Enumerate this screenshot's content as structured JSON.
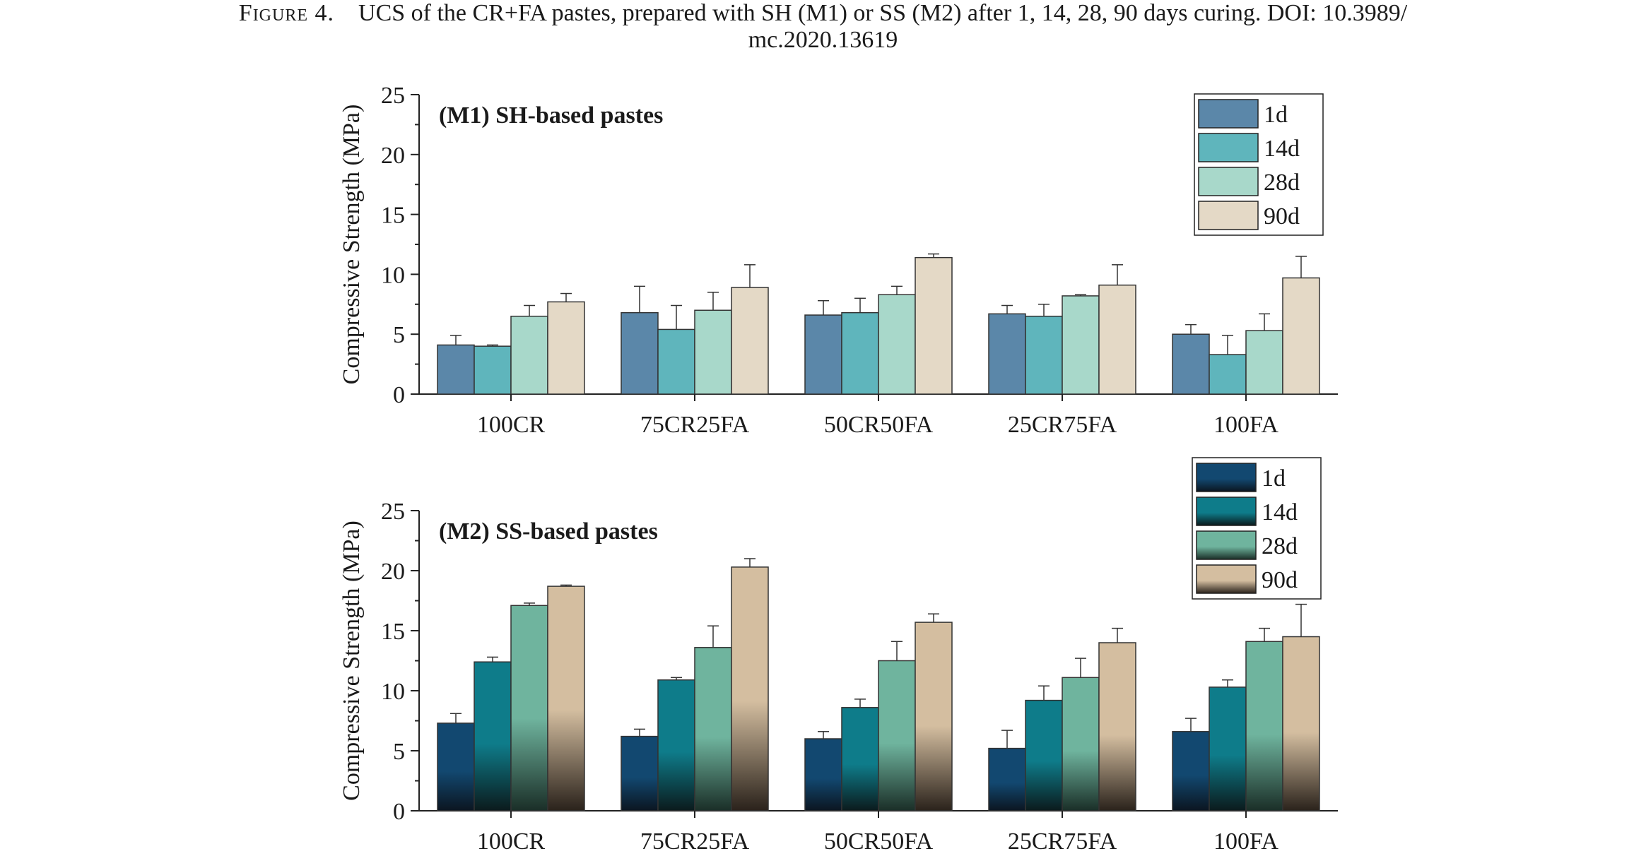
{
  "caption": {
    "figure_label": "Figure 4.",
    "text_line1": "UCS of the CR+FA pastes, prepared with SH (M1) or SS (M2) after 1, 14, 28, 90 days curing. DOI: 10.3989/",
    "text_line2": "mc.2020.13619"
  },
  "chart_data": [
    {
      "type": "bar",
      "panel_title": "(M1) SH-based pastes",
      "ylabel": "Compressive Strength (MPa)",
      "xlabel": "",
      "ylim": [
        0,
        25
      ],
      "yticks": [
        0,
        5,
        10,
        15,
        20,
        25
      ],
      "categories": [
        "100CR",
        "75CR25FA",
        "50CR50FA",
        "25CR75FA",
        "100FA"
      ],
      "legend_position": "top-right",
      "series": [
        {
          "name": "1d",
          "color": "#5b87a9",
          "values": [
            4.1,
            6.8,
            6.6,
            6.7,
            5.0
          ],
          "errors": [
            0.8,
            2.2,
            1.2,
            0.7,
            0.8
          ]
        },
        {
          "name": "14d",
          "color": "#5fb5bc",
          "values": [
            4.0,
            5.4,
            6.8,
            6.5,
            3.3
          ],
          "errors": [
            0.1,
            2.0,
            1.2,
            1.0,
            1.6
          ]
        },
        {
          "name": "28d",
          "color": "#a8d8ca",
          "values": [
            6.5,
            7.0,
            8.3,
            8.2,
            5.3
          ],
          "errors": [
            0.9,
            1.5,
            0.7,
            0.1,
            1.4
          ]
        },
        {
          "name": "90d",
          "color": "#e4d9c6",
          "values": [
            7.7,
            8.9,
            11.4,
            9.1,
            9.7
          ],
          "errors": [
            0.7,
            1.9,
            0.3,
            1.7,
            1.8
          ]
        }
      ]
    },
    {
      "type": "bar",
      "panel_title": "(M2) SS-based pastes",
      "ylabel": "Compressive Strength (MPa)",
      "xlabel": "",
      "ylim": [
        0,
        25
      ],
      "yticks": [
        0,
        5,
        10,
        15,
        20,
        25
      ],
      "categories": [
        "100CR",
        "75CR25FA",
        "50CR50FA",
        "25CR75FA",
        "100FA"
      ],
      "legend_position": "top-right",
      "series": [
        {
          "name": "1d",
          "color": "#124870",
          "gradient_bottom": "#0b1520",
          "values": [
            7.3,
            6.2,
            6.0,
            5.2,
            6.6
          ],
          "errors": [
            0.8,
            0.6,
            0.6,
            1.5,
            1.1
          ]
        },
        {
          "name": "14d",
          "color": "#0e7c8a",
          "gradient_bottom": "#0b1a1c",
          "values": [
            12.4,
            10.9,
            8.6,
            9.2,
            10.3
          ],
          "errors": [
            0.4,
            0.2,
            0.7,
            1.2,
            0.6
          ]
        },
        {
          "name": "28d",
          "color": "#6fb49e",
          "gradient_bottom": "#1a2e27",
          "values": [
            17.1,
            13.6,
            12.5,
            11.1,
            14.1
          ],
          "errors": [
            0.2,
            1.8,
            1.6,
            1.6,
            1.1
          ]
        },
        {
          "name": "90d",
          "color": "#d4bea0",
          "gradient_bottom": "#2a221b",
          "values": [
            18.7,
            20.3,
            15.7,
            14.0,
            14.5
          ],
          "errors": [
            0.1,
            0.7,
            0.7,
            1.2,
            2.7
          ]
        }
      ]
    }
  ]
}
